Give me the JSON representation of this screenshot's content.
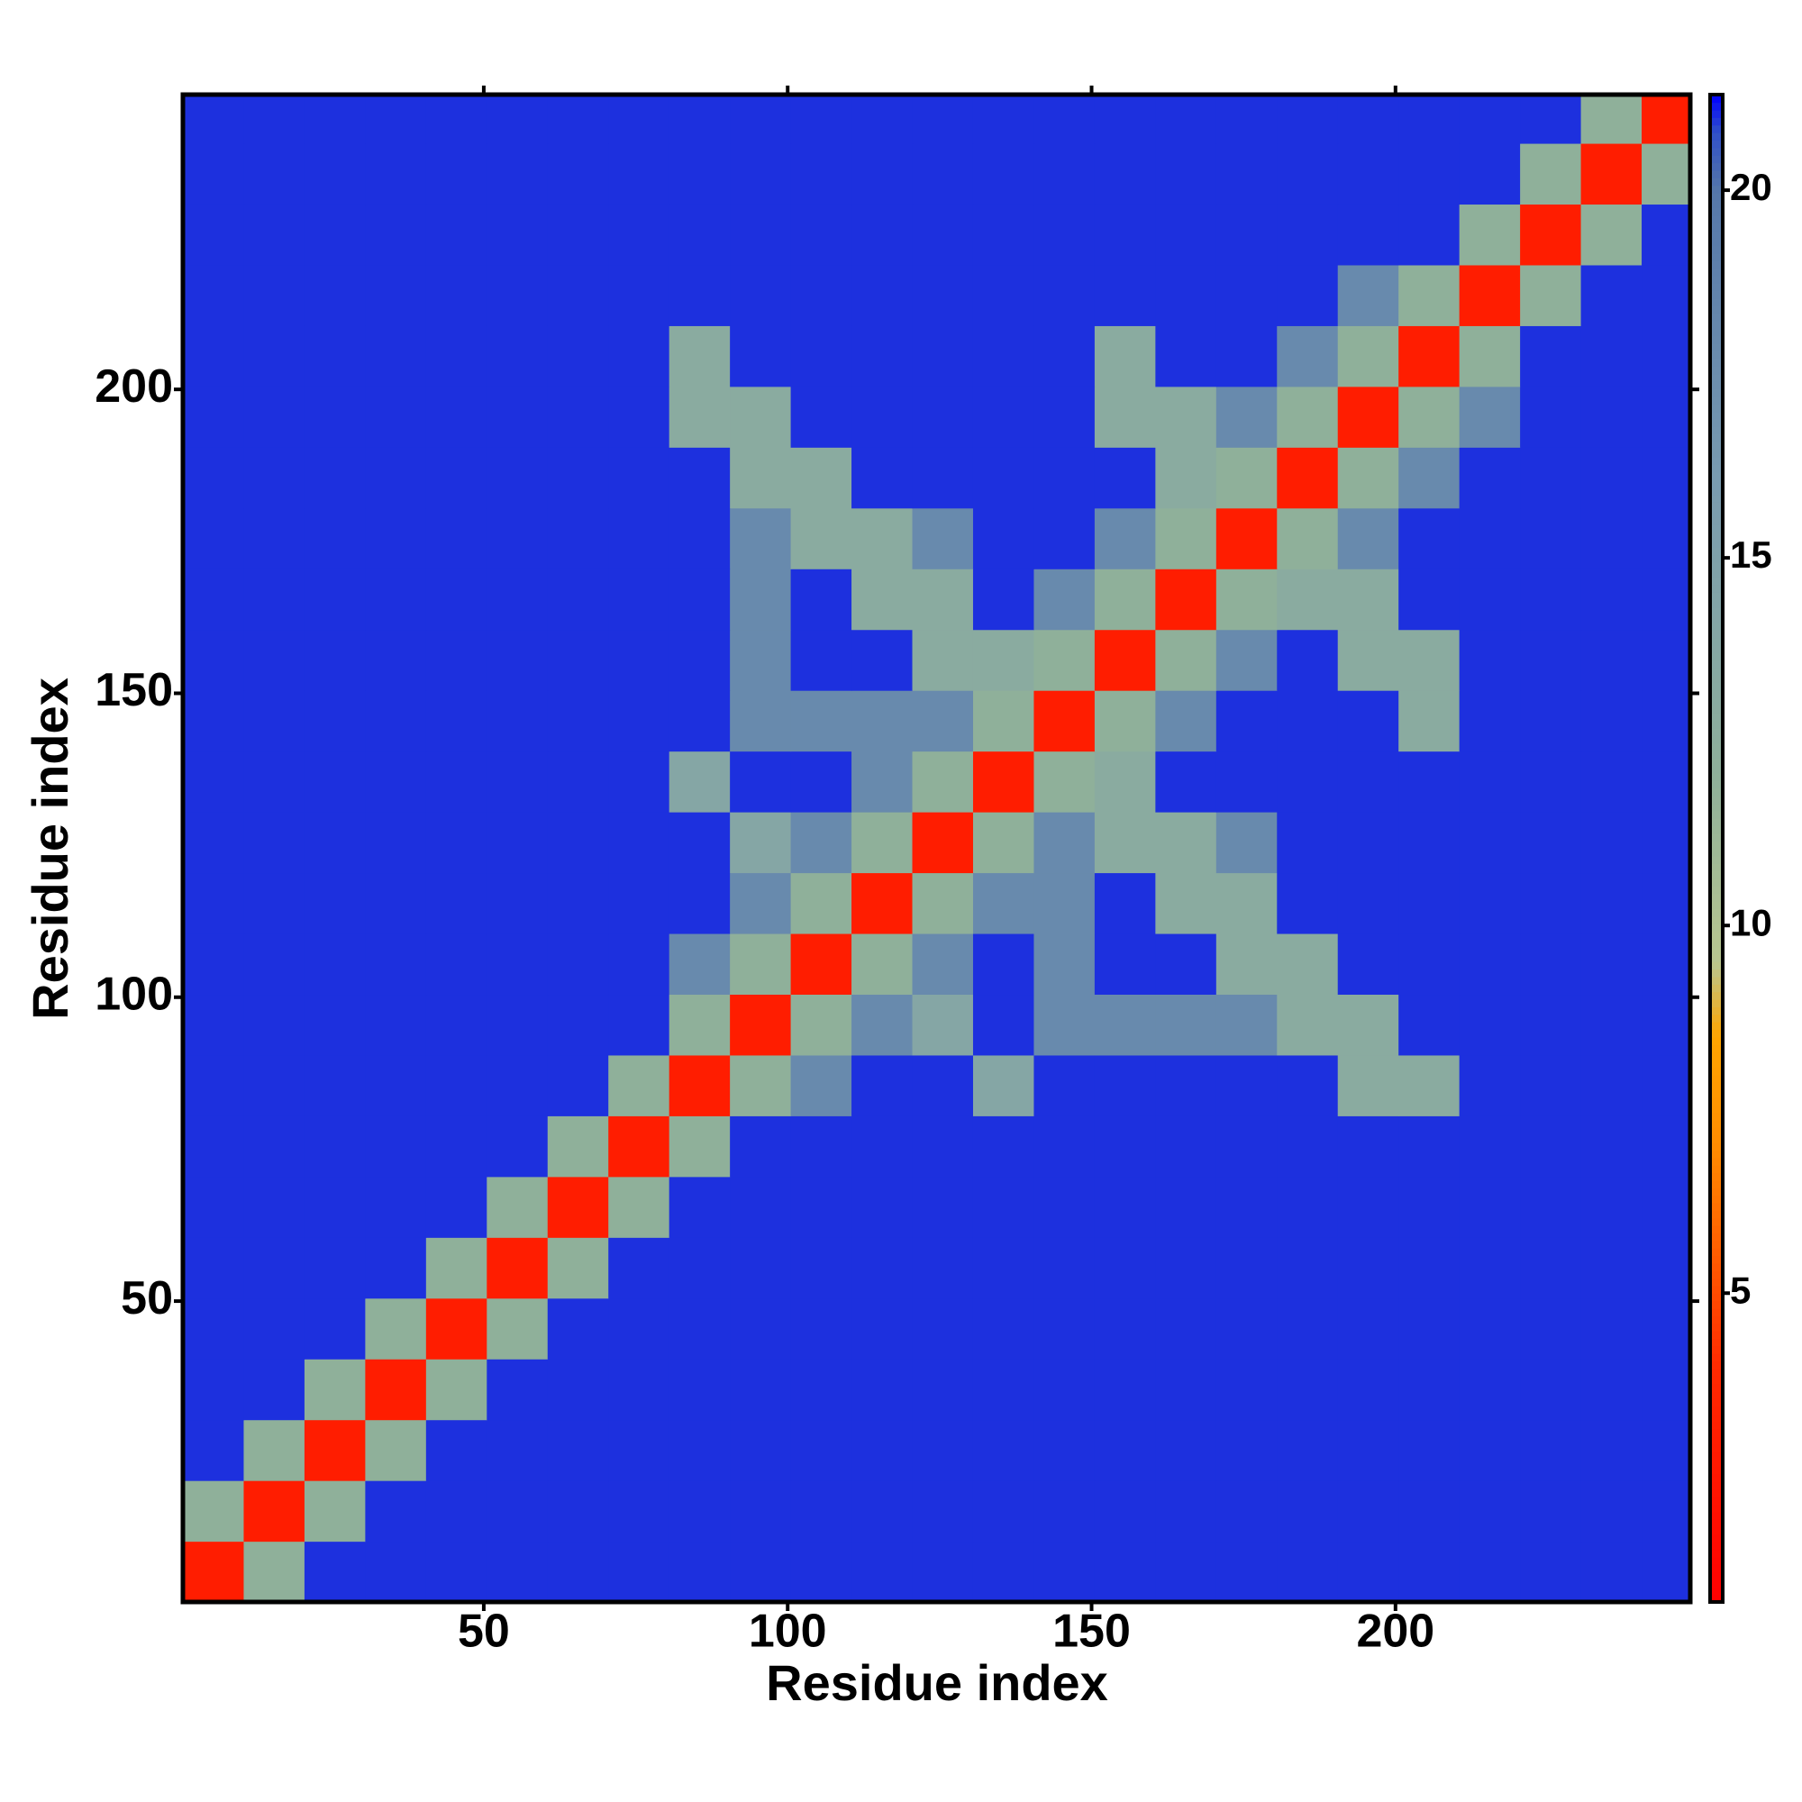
{
  "chart_data": {
    "type": "heatmap",
    "xlabel": "Residue index",
    "ylabel": "Residue index",
    "xbins": [
      0.5,
      10.5,
      20.5,
      30.5,
      40.5,
      50.5,
      60.5,
      70.5,
      80.5,
      90.5,
      100.5,
      110.5,
      120.5,
      130.5,
      140.5,
      150.5,
      160.5,
      170.5,
      180.5,
      190.5,
      200.5,
      210.5,
      220.5,
      230.5,
      240.5,
      248.5
    ],
    "ybins": [
      0.5,
      10.5,
      20.5,
      30.5,
      40.5,
      50.5,
      60.5,
      70.5,
      80.5,
      90.5,
      100.5,
      110.5,
      120.5,
      130.5,
      140.5,
      150.5,
      160.5,
      170.5,
      180.5,
      190.5,
      200.5,
      210.5,
      220.5,
      230.5,
      240.5,
      248.5
    ],
    "xlim": [
      0.5,
      248.5
    ],
    "ylim": [
      0.5,
      248.5
    ],
    "xticks": [
      50,
      100,
      150,
      200
    ],
    "yticks": [
      50,
      100,
      150,
      200
    ],
    "zlim": [
      0.8,
      21.3
    ],
    "zticks": [
      5,
      10,
      15,
      20
    ],
    "colorscale": [
      {
        "value": 0.8,
        "color": "#ff0000"
      },
      {
        "value": 4,
        "color": "#ff2a00"
      },
      {
        "value": 7,
        "color": "#ff8c00"
      },
      {
        "value": 8.5,
        "color": "#ffa500"
      },
      {
        "value": 9.5,
        "color": "#b8c690"
      },
      {
        "value": 12,
        "color": "#8fb09a"
      },
      {
        "value": 16,
        "color": "#7a9cb0"
      },
      {
        "value": 20,
        "color": "#5577aa"
      },
      {
        "value": 20.8,
        "color": "#3050c8"
      },
      {
        "value": 21.3,
        "color": "#0000ff"
      }
    ],
    "z": [
      [
        3,
        12,
        21,
        21,
        21,
        21,
        21,
        21,
        21,
        21,
        21,
        21,
        21,
        21,
        21,
        21,
        21,
        21,
        21,
        21,
        21,
        21,
        21,
        21,
        21
      ],
      [
        12,
        3,
        12,
        21,
        21,
        21,
        21,
        21,
        21,
        21,
        21,
        21,
        21,
        21,
        21,
        21,
        21,
        21,
        21,
        21,
        21,
        21,
        21,
        21,
        21
      ],
      [
        21,
        12,
        3,
        12,
        21,
        21,
        21,
        21,
        21,
        21,
        21,
        21,
        21,
        21,
        21,
        21,
        21,
        21,
        21,
        21,
        21,
        21,
        21,
        21,
        21
      ],
      [
        21,
        21,
        12,
        3,
        12,
        21,
        21,
        21,
        21,
        21,
        21,
        21,
        21,
        21,
        21,
        21,
        21,
        21,
        21,
        21,
        21,
        21,
        21,
        21,
        21
      ],
      [
        21,
        21,
        21,
        12,
        3,
        12,
        21,
        21,
        21,
        21,
        21,
        21,
        21,
        21,
        21,
        21,
        21,
        21,
        21,
        21,
        21,
        21,
        21,
        21,
        21
      ],
      [
        21,
        21,
        21,
        21,
        12,
        3,
        12,
        21,
        21,
        21,
        21,
        21,
        21,
        21,
        21,
        21,
        21,
        21,
        21,
        21,
        21,
        21,
        21,
        21,
        21
      ],
      [
        21,
        21,
        21,
        21,
        21,
        12,
        3,
        12,
        21,
        21,
        21,
        21,
        21,
        21,
        21,
        21,
        21,
        21,
        21,
        21,
        21,
        21,
        21,
        21,
        21
      ],
      [
        21,
        21,
        21,
        21,
        21,
        21,
        12,
        3,
        12,
        21,
        21,
        21,
        21,
        21,
        21,
        21,
        21,
        21,
        21,
        21,
        21,
        21,
        21,
        21,
        21
      ],
      [
        21,
        21,
        21,
        21,
        21,
        21,
        21,
        12,
        3,
        12,
        18,
        21,
        21,
        14,
        21,
        21,
        21,
        21,
        21,
        13,
        13,
        21,
        21,
        21,
        21
      ],
      [
        21,
        21,
        21,
        21,
        21,
        21,
        21,
        21,
        12,
        3,
        12,
        18,
        14,
        21,
        18,
        18,
        18,
        18,
        13,
        13,
        21,
        21,
        21,
        21,
        21
      ],
      [
        21,
        21,
        21,
        21,
        21,
        21,
        21,
        21,
        18,
        12,
        3,
        12,
        18,
        21,
        18,
        21,
        21,
        13,
        13,
        21,
        21,
        21,
        21,
        21,
        21
      ],
      [
        21,
        21,
        21,
        21,
        21,
        21,
        21,
        21,
        21,
        18,
        12,
        3,
        12,
        18,
        18,
        21,
        13,
        13,
        21,
        21,
        21,
        21,
        21,
        21,
        21
      ],
      [
        21,
        21,
        21,
        21,
        21,
        21,
        21,
        21,
        21,
        14,
        18,
        12,
        3,
        12,
        18,
        13,
        13,
        18,
        21,
        21,
        21,
        21,
        21,
        21,
        21
      ],
      [
        21,
        21,
        21,
        21,
        21,
        21,
        21,
        21,
        14,
        21,
        21,
        18,
        12,
        3,
        12,
        13,
        21,
        21,
        21,
        21,
        21,
        21,
        21,
        21,
        21
      ],
      [
        21,
        21,
        21,
        21,
        21,
        21,
        21,
        21,
        21,
        18,
        18,
        18,
        18,
        12,
        3,
        12,
        18,
        21,
        21,
        21,
        13,
        21,
        21,
        21,
        21
      ],
      [
        21,
        21,
        21,
        21,
        21,
        21,
        21,
        21,
        21,
        18,
        21,
        21,
        13,
        13,
        12,
        3,
        12,
        18,
        21,
        13,
        13,
        21,
        21,
        21,
        21
      ],
      [
        21,
        21,
        21,
        21,
        21,
        21,
        21,
        21,
        21,
        18,
        21,
        13,
        13,
        21,
        18,
        12,
        3,
        12,
        13,
        13,
        21,
        21,
        21,
        21,
        21
      ],
      [
        21,
        21,
        21,
        21,
        21,
        21,
        21,
        21,
        21,
        18,
        13,
        13,
        18,
        21,
        21,
        18,
        12,
        3,
        12,
        18,
        21,
        21,
        21,
        21,
        21
      ],
      [
        21,
        21,
        21,
        21,
        21,
        21,
        21,
        21,
        21,
        13,
        13,
        21,
        21,
        21,
        21,
        21,
        13,
        12,
        3,
        12,
        18,
        21,
        21,
        21,
        21
      ],
      [
        21,
        21,
        21,
        21,
        21,
        21,
        21,
        21,
        13,
        13,
        21,
        21,
        21,
        21,
        21,
        13,
        13,
        18,
        12,
        3,
        12,
        18,
        21,
        21,
        21
      ],
      [
        21,
        21,
        21,
        21,
        21,
        21,
        21,
        21,
        13,
        21,
        21,
        21,
        21,
        21,
        21,
        13,
        21,
        21,
        18,
        12,
        3,
        12,
        21,
        21,
        21
      ],
      [
        21,
        21,
        21,
        21,
        21,
        21,
        21,
        21,
        21,
        21,
        21,
        21,
        21,
        21,
        21,
        21,
        21,
        21,
        21,
        18,
        12,
        3,
        12,
        21,
        21
      ],
      [
        21,
        21,
        21,
        21,
        21,
        21,
        21,
        21,
        21,
        21,
        21,
        21,
        21,
        21,
        21,
        21,
        21,
        21,
        21,
        21,
        21,
        12,
        3,
        12,
        21
      ],
      [
        21,
        21,
        21,
        21,
        21,
        21,
        21,
        21,
        21,
        21,
        21,
        21,
        21,
        21,
        21,
        21,
        21,
        21,
        21,
        21,
        21,
        21,
        12,
        3,
        12
      ],
      [
        21,
        21,
        21,
        21,
        21,
        21,
        21,
        21,
        21,
        21,
        21,
        21,
        21,
        21,
        21,
        21,
        21,
        21,
        21,
        21,
        21,
        21,
        21,
        12,
        3
      ]
    ]
  }
}
